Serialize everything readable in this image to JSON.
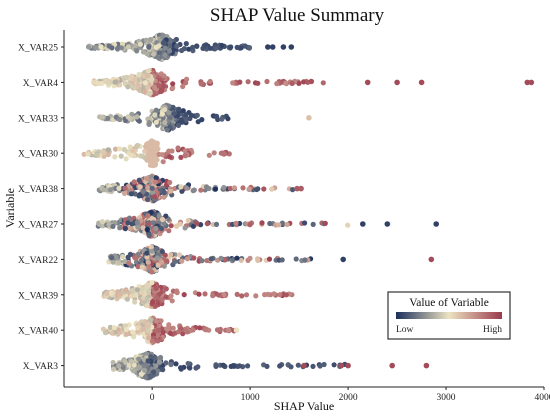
{
  "chart_data": {
    "type": "scatter",
    "subtype": "shap-beeswarm",
    "title": "SHAP Value Summary",
    "xlabel": "SHAP Value",
    "ylabel": "Variable",
    "xlim": [
      -900,
      4000
    ],
    "xticks": [
      0,
      1000,
      2000,
      3000,
      4000
    ],
    "grid": false,
    "legend": {
      "title": "Value of Variable",
      "low_label": "Low",
      "high_label": "High",
      "placement": "bottom-right"
    },
    "colors": {
      "low": "#1c2f5c",
      "mid": "#ece3c1",
      "high": "#9b3a4d"
    },
    "variables": [
      {
        "name": "X_VAR25",
        "core": [
          -650,
          100,
          1050
        ],
        "shape": "wide-right",
        "dominant_color": "low",
        "outliers": [
          {
            "x": 1180,
            "c": 0.05
          },
          {
            "x": 1230,
            "c": 0.05
          },
          {
            "x": 1340,
            "c": 0.05
          },
          {
            "x": 1420,
            "c": 0.05
          }
        ]
      },
      {
        "name": "X_VAR4",
        "core": [
          -600,
          0,
          1900
        ],
        "shape": "wide-right",
        "dominant_color": "high",
        "outliers": [
          {
            "x": 2200,
            "c": 0.95
          },
          {
            "x": 2500,
            "c": 0.95
          },
          {
            "x": 2750,
            "c": 0.95
          },
          {
            "x": 3830,
            "c": 0.95
          },
          {
            "x": 3870,
            "c": 0.95
          }
        ]
      },
      {
        "name": "X_VAR33",
        "core": [
          -550,
          150,
          800
        ],
        "shape": "tight",
        "dominant_color": "low",
        "outliers": [
          {
            "x": 1600,
            "c": 0.6
          }
        ]
      },
      {
        "name": "X_VAR30",
        "core": [
          -700,
          0,
          800
        ],
        "shape": "center-spike",
        "dominant_color": "high",
        "outliers": []
      },
      {
        "name": "X_VAR38",
        "core": [
          -550,
          0,
          1450
        ],
        "shape": "wide-right",
        "dominant_color": "mixed",
        "outliers": [
          {
            "x": 1480,
            "c": 0.9
          },
          {
            "x": 1520,
            "c": 0.9
          }
        ]
      },
      {
        "name": "X_VAR27",
        "core": [
          -550,
          0,
          2000
        ],
        "shape": "wide-right",
        "dominant_color": "mixed",
        "outliers": [
          {
            "x": 2150,
            "c": 0.05
          },
          {
            "x": 2400,
            "c": 0.05
          },
          {
            "x": 2900,
            "c": 0.05
          }
        ]
      },
      {
        "name": "X_VAR22",
        "core": [
          -450,
          0,
          1650
        ],
        "shape": "wide-right",
        "dominant_color": "mixed",
        "outliers": [
          {
            "x": 1950,
            "c": 0.05
          },
          {
            "x": 2850,
            "c": 0.95
          }
        ]
      },
      {
        "name": "X_VAR39",
        "core": [
          -500,
          0,
          1450
        ],
        "shape": "wide-right",
        "dominant_color": "high",
        "outliers": []
      },
      {
        "name": "X_VAR40",
        "core": [
          -500,
          0,
          850
        ],
        "shape": "tight",
        "dominant_color": "high",
        "outliers": [
          {
            "x": 860,
            "c": 0.5
          }
        ]
      },
      {
        "name": "X_VAR3",
        "core": [
          -400,
          -50,
          2000
        ],
        "shape": "wide-right",
        "dominant_color": "low",
        "outliers": [
          {
            "x": 1550,
            "c": 0.95
          },
          {
            "x": 1930,
            "c": 0.95
          },
          {
            "x": 2000,
            "c": 0.95
          },
          {
            "x": 2450,
            "c": 0.95
          },
          {
            "x": 2800,
            "c": 0.95
          }
        ]
      }
    ]
  }
}
